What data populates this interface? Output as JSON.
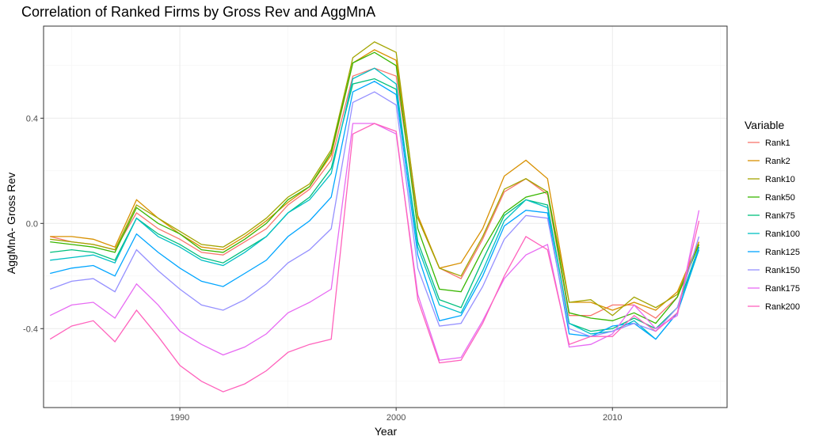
{
  "chart_data": {
    "type": "line",
    "title": "Correlation of Ranked Firms by Gross Rev and AggMnA",
    "xlabel": "Year",
    "ylabel": "AggMnA- Gross Rev",
    "xlim": [
      1983.7,
      2015.3
    ],
    "ylim": [
      -0.7,
      0.75
    ],
    "x_ticks": [
      1990,
      2000,
      2010
    ],
    "y_ticks": [
      -0.4,
      0.0,
      0.4
    ],
    "y_tick_labels": [
      "-0.4",
      "0.0",
      "0.4"
    ],
    "grid": true,
    "legend_title": "Variable",
    "legend_position": "right",
    "x": [
      1984,
      1985,
      1986,
      1987,
      1988,
      1989,
      1990,
      1991,
      1992,
      1993,
      1994,
      1995,
      1996,
      1997,
      1998,
      1999,
      2000,
      2001,
      2002,
      2003,
      2004,
      2005,
      2006,
      2007,
      2008,
      2009,
      2010,
      2011,
      2012,
      2013,
      2014
    ],
    "series": [
      {
        "name": "Rank1",
        "color": "#F8766D",
        "values": [
          -0.05,
          -0.07,
          -0.08,
          -0.1,
          0.04,
          -0.02,
          -0.06,
          -0.11,
          -0.12,
          -0.07,
          -0.02,
          0.07,
          0.13,
          0.24,
          0.56,
          0.59,
          0.56,
          0.02,
          -0.17,
          -0.21,
          -0.06,
          0.12,
          0.17,
          0.11,
          -0.35,
          -0.35,
          -0.31,
          -0.31,
          -0.36,
          -0.28,
          -0.07
        ]
      },
      {
        "name": "Rank2",
        "color": "#D89000",
        "values": [
          -0.05,
          -0.05,
          -0.06,
          -0.09,
          0.09,
          0.02,
          -0.04,
          -0.09,
          -0.1,
          -0.05,
          0.01,
          0.08,
          0.14,
          0.26,
          0.61,
          0.66,
          0.62,
          0.03,
          -0.17,
          -0.15,
          -0.02,
          0.18,
          0.24,
          0.17,
          -0.3,
          -0.3,
          -0.33,
          -0.3,
          -0.33,
          -0.26,
          -0.07
        ]
      },
      {
        "name": "Rank10",
        "color": "#A3A500",
        "values": [
          -0.06,
          -0.07,
          -0.08,
          -0.1,
          0.07,
          0.02,
          -0.03,
          -0.08,
          -0.09,
          -0.04,
          0.02,
          0.1,
          0.15,
          0.28,
          0.63,
          0.69,
          0.65,
          0.02,
          -0.17,
          -0.2,
          -0.05,
          0.13,
          0.17,
          0.12,
          -0.3,
          -0.29,
          -0.35,
          -0.28,
          -0.32,
          -0.27,
          -0.08
        ]
      },
      {
        "name": "Rank50",
        "color": "#39B600",
        "values": [
          -0.07,
          -0.08,
          -0.09,
          -0.11,
          0.06,
          0.0,
          -0.04,
          -0.1,
          -0.11,
          -0.06,
          0.0,
          0.09,
          0.14,
          0.27,
          0.61,
          0.65,
          0.6,
          -0.02,
          -0.25,
          -0.26,
          -0.1,
          0.04,
          0.1,
          0.12,
          -0.34,
          -0.36,
          -0.37,
          -0.34,
          -0.38,
          -0.28,
          -0.08
        ]
      },
      {
        "name": "Rank75",
        "color": "#00BF7D",
        "values": [
          -0.11,
          -0.1,
          -0.11,
          -0.14,
          0.02,
          -0.04,
          -0.08,
          -0.13,
          -0.15,
          -0.1,
          -0.05,
          0.04,
          0.1,
          0.21,
          0.53,
          0.55,
          0.51,
          -0.07,
          -0.29,
          -0.32,
          -0.14,
          0.03,
          0.09,
          0.07,
          -0.38,
          -0.41,
          -0.4,
          -0.36,
          -0.4,
          -0.32,
          -0.09
        ]
      },
      {
        "name": "Rank100",
        "color": "#00BFC4",
        "values": [
          -0.14,
          -0.13,
          -0.12,
          -0.15,
          0.02,
          -0.05,
          -0.09,
          -0.14,
          -0.16,
          -0.11,
          -0.05,
          0.04,
          0.09,
          0.19,
          0.55,
          0.59,
          0.53,
          -0.09,
          -0.31,
          -0.34,
          -0.18,
          0.01,
          0.09,
          0.06,
          -0.38,
          -0.42,
          -0.41,
          -0.37,
          -0.44,
          -0.34,
          -0.1
        ]
      },
      {
        "name": "Rank125",
        "color": "#00A5FF",
        "values": [
          -0.19,
          -0.17,
          -0.16,
          -0.2,
          -0.04,
          -0.11,
          -0.17,
          -0.22,
          -0.24,
          -0.19,
          -0.14,
          -0.05,
          0.01,
          0.1,
          0.5,
          0.54,
          0.49,
          -0.12,
          -0.37,
          -0.35,
          -0.2,
          -0.01,
          0.05,
          0.04,
          -0.42,
          -0.43,
          -0.39,
          -0.38,
          -0.44,
          -0.34,
          -0.09
        ]
      },
      {
        "name": "Rank150",
        "color": "#9590FF",
        "values": [
          -0.25,
          -0.22,
          -0.21,
          -0.26,
          -0.1,
          -0.18,
          -0.25,
          -0.31,
          -0.33,
          -0.29,
          -0.23,
          -0.15,
          -0.1,
          -0.02,
          0.46,
          0.5,
          0.45,
          -0.17,
          -0.39,
          -0.38,
          -0.24,
          -0.06,
          0.03,
          0.02,
          -0.4,
          -0.43,
          -0.41,
          -0.38,
          -0.41,
          -0.32,
          -0.05
        ]
      },
      {
        "name": "Rank175",
        "color": "#E76BF3",
        "values": [
          -0.35,
          -0.31,
          -0.3,
          -0.36,
          -0.23,
          -0.31,
          -0.41,
          -0.46,
          -0.5,
          -0.47,
          -0.42,
          -0.34,
          -0.3,
          -0.25,
          0.38,
          0.38,
          0.34,
          -0.27,
          -0.52,
          -0.51,
          -0.37,
          -0.21,
          -0.12,
          -0.08,
          -0.47,
          -0.46,
          -0.42,
          -0.31,
          -0.4,
          -0.35,
          0.05
        ]
      },
      {
        "name": "Rank200",
        "color": "#FF62BC",
        "values": [
          -0.44,
          -0.39,
          -0.37,
          -0.45,
          -0.33,
          -0.43,
          -0.54,
          -0.6,
          -0.64,
          -0.61,
          -0.56,
          -0.49,
          -0.46,
          -0.44,
          0.34,
          0.38,
          0.35,
          -0.29,
          -0.53,
          -0.52,
          -0.38,
          -0.2,
          -0.05,
          -0.1,
          -0.46,
          -0.43,
          -0.43,
          -0.35,
          -0.41,
          -0.34,
          0.01
        ]
      }
    ]
  }
}
